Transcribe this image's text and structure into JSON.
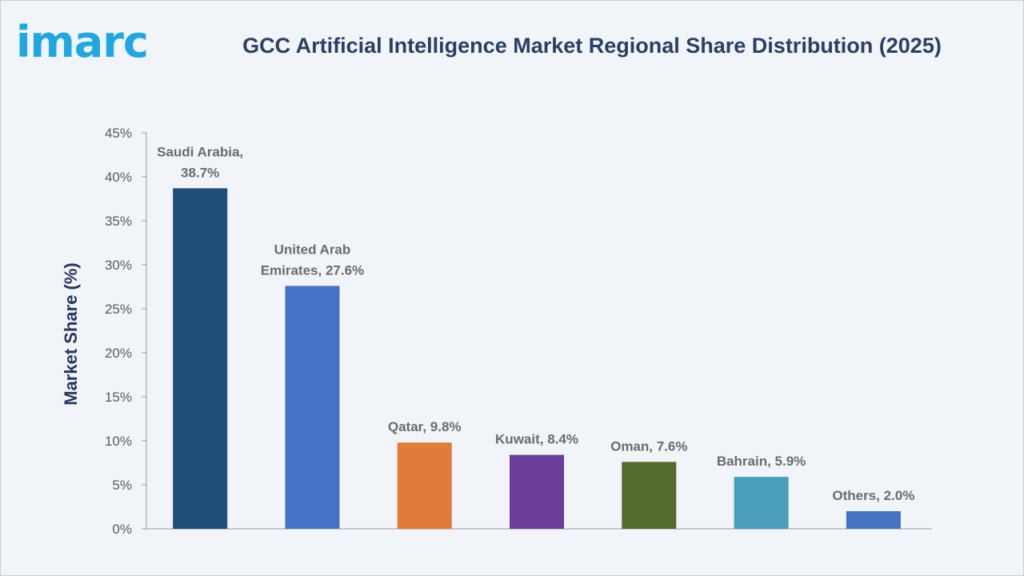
{
  "brand": {
    "logo_text": "imarc",
    "logo_color": "#1ea7e1"
  },
  "chart_data": {
    "type": "bar",
    "title": "GCC Artificial Intelligence Market Regional Share Distribution (2025)",
    "xlabel": "",
    "ylabel": "Market Share (%)",
    "ylim": [
      0,
      45
    ],
    "yticks": [
      "0%",
      "5%",
      "10%",
      "15%",
      "20%",
      "25%",
      "30%",
      "35%",
      "40%",
      "45%"
    ],
    "grid": false,
    "categories": [
      "Saudi Arabia",
      "United Arab Emirates",
      "Qatar",
      "Kuwait",
      "Oman",
      "Bahrain",
      "Others"
    ],
    "values": [
      38.7,
      27.6,
      9.8,
      8.4,
      7.6,
      5.9,
      2.0
    ],
    "data_labels": [
      [
        "Saudi Arabia,",
        "38.7%"
      ],
      [
        "United Arab",
        "Emirates, 27.6%"
      ],
      [
        "Qatar, 9.8%"
      ],
      [
        "Kuwait, 8.4%"
      ],
      [
        "Oman, 7.6%"
      ],
      [
        "Bahrain, 5.9%"
      ],
      [
        "Others, 2.0%"
      ]
    ],
    "colors": [
      "#1f4e79",
      "#4472c4",
      "#e07b39",
      "#6a3d9a",
      "#546b2b",
      "#4a9ebb",
      "#4472c4"
    ]
  }
}
